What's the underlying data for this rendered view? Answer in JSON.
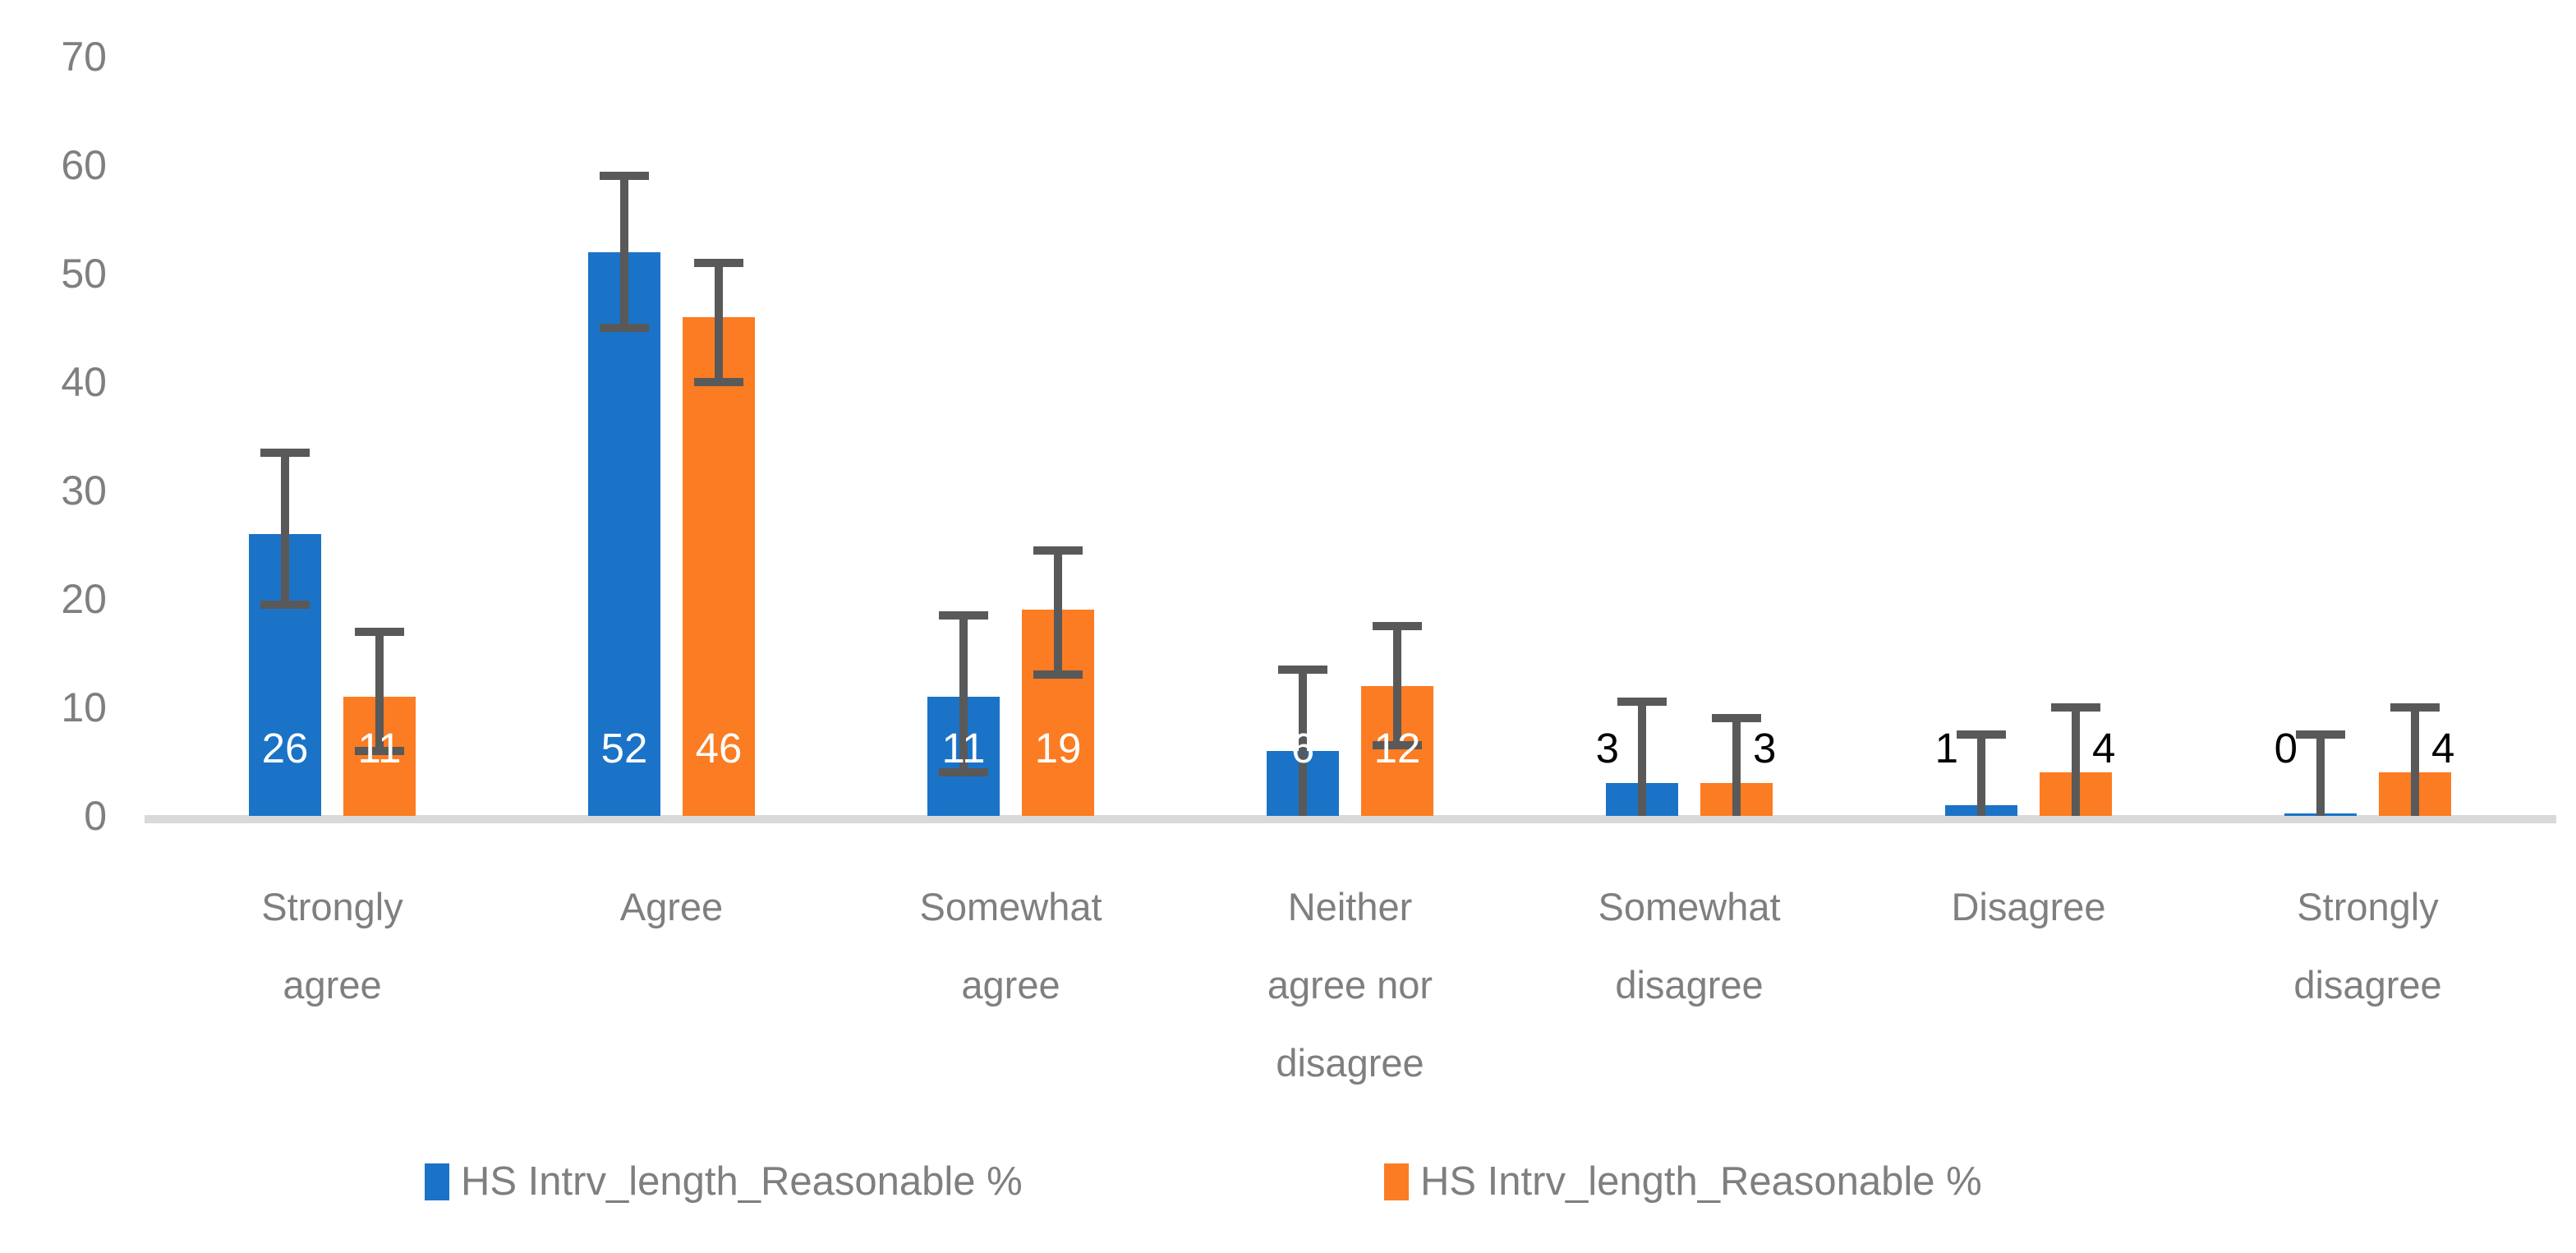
{
  "chart_data": {
    "type": "bar",
    "title": "",
    "xlabel": "",
    "ylabel": "",
    "grid": false,
    "legend_position": "bottom",
    "ylim": [
      0,
      70
    ],
    "y_ticks": [
      0,
      10,
      20,
      30,
      40,
      50,
      60,
      70
    ],
    "categories": [
      "Strongly\nagree",
      "Agree",
      "Somewhat\nagree",
      "Neither\nagree nor\ndisagree",
      "Somewhat\ndisagree",
      "Disagree",
      "Strongly\ndisagree"
    ],
    "series": [
      {
        "name": "HS Intrv_length_Reasonable %",
        "color": "#1B73C7",
        "values": [
          26,
          52,
          11,
          6,
          3,
          1,
          0
        ],
        "error_low": [
          19.5,
          45,
          4,
          0,
          0,
          0,
          0
        ],
        "error_high": [
          33.5,
          59,
          18.5,
          13.5,
          10.5,
          7.5,
          7.5
        ]
      },
      {
        "name": "HS Intrv_length_Reasonable %",
        "color": "#FB7C22",
        "values": [
          11,
          46,
          19,
          12,
          3,
          4,
          4
        ],
        "error_low": [
          6,
          40,
          13,
          6.5,
          0,
          0,
          0
        ],
        "error_high": [
          17,
          51,
          24.5,
          17.5,
          9,
          10,
          10
        ]
      }
    ],
    "colors": {
      "error_bar": "#595959",
      "axis_line": "#D9D9D9",
      "tick_label": "#7F7F7F",
      "data_label_inside": "#FFFFFF",
      "data_label_outside": "#000000"
    }
  }
}
